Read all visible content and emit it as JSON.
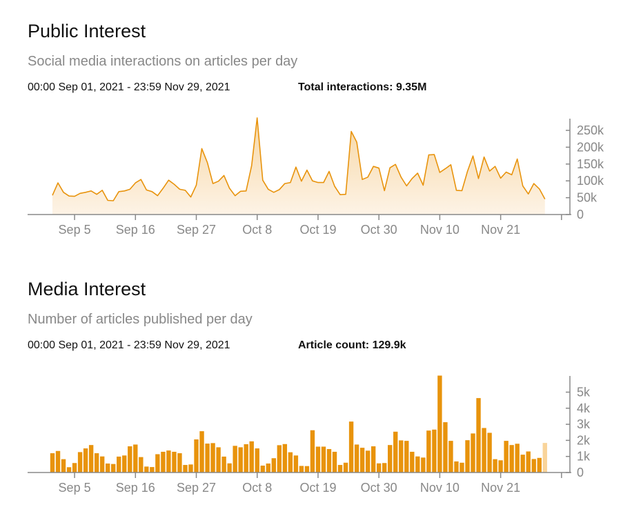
{
  "colors": {
    "accent": "#e8930c",
    "area_fill_top": "#f7d7a4",
    "area_fill_bottom": "#fdf3e6",
    "partial_bar": "#f9d49a",
    "axis": "#888888"
  },
  "public": {
    "title": "Public Interest",
    "subtitle": "Social media interactions on articles per day",
    "range": "00:00 Sep 01, 2021 - 23:59 Nov 29, 2021",
    "total": "Total interactions: 9.35M"
  },
  "media": {
    "title": "Media Interest",
    "subtitle": "Number of articles published per day",
    "range": "00:00 Sep 01, 2021 - 23:59 Nov 29, 2021",
    "total": "Article count: 129.9k"
  },
  "chart_data": [
    {
      "type": "area",
      "x_start": "2021-09-01",
      "x_end": "2021-11-29",
      "x_tick_labels": [
        "Sep 5",
        "Sep 16",
        "Sep 27",
        "Oct 8",
        "Oct 19",
        "Oct 30",
        "Nov 10",
        "Nov 21"
      ],
      "y_tick_labels": [
        "0",
        "50k",
        "100k",
        "150k",
        "200k",
        "250k"
      ],
      "ylim": [
        0,
        285000
      ],
      "grid": false,
      "values": [
        57000,
        94000,
        66000,
        55000,
        54000,
        63000,
        66000,
        70000,
        60000,
        72000,
        42000,
        41000,
        68000,
        70000,
        75000,
        94000,
        104000,
        73000,
        68000,
        56000,
        78000,
        102000,
        90000,
        75000,
        72000,
        52000,
        87000,
        196000,
        154000,
        92000,
        99000,
        116000,
        78000,
        56000,
        69000,
        70000,
        145000,
        287000,
        102000,
        75000,
        66000,
        74000,
        92000,
        95000,
        141000,
        99000,
        132000,
        100000,
        95000,
        95000,
        128000,
        84000,
        59000,
        60000,
        247000,
        215000,
        104000,
        111000,
        143000,
        138000,
        71000,
        139000,
        149000,
        111000,
        85000,
        107000,
        123000,
        87000,
        177000,
        178000,
        125000,
        136000,
        148000,
        72000,
        71000,
        128000,
        174000,
        107000,
        171000,
        129000,
        143000,
        108000,
        126000,
        118000,
        165000,
        85000,
        61000,
        92000,
        76000,
        46000
      ]
    },
    {
      "type": "bar",
      "x_start": "2021-09-01",
      "x_end": "2021-11-29",
      "x_tick_labels": [
        "Sep 5",
        "Sep 16",
        "Sep 27",
        "Oct 8",
        "Oct 19",
        "Oct 30",
        "Nov 10",
        "Nov 21"
      ],
      "y_tick_labels": [
        "0",
        "1k",
        "2k",
        "3k",
        "4k",
        "5k"
      ],
      "ylim": [
        0,
        6100
      ],
      "grid": false,
      "values": [
        1200,
        1340,
        830,
        330,
        590,
        1270,
        1500,
        1710,
        1200,
        1000,
        560,
        530,
        990,
        1060,
        1630,
        1740,
        960,
        370,
        340,
        1140,
        1290,
        1370,
        1290,
        1200,
        470,
        500,
        2060,
        2570,
        1800,
        1830,
        1570,
        990,
        570,
        1660,
        1570,
        1760,
        1940,
        1500,
        430,
        560,
        890,
        1700,
        1770,
        1260,
        1060,
        410,
        400,
        2630,
        1610,
        1610,
        1460,
        1290,
        470,
        610,
        3170,
        1740,
        1540,
        1360,
        1630,
        570,
        590,
        1710,
        2540,
        2000,
        1970,
        1290,
        1000,
        930,
        2610,
        2670,
        6030,
        3130,
        1970,
        690,
        610,
        2010,
        2430,
        4630,
        2770,
        2470,
        830,
        760,
        1970,
        1710,
        1790,
        1110,
        1310,
        840,
        910,
        1840
      ],
      "last_bar_partial": true
    }
  ]
}
